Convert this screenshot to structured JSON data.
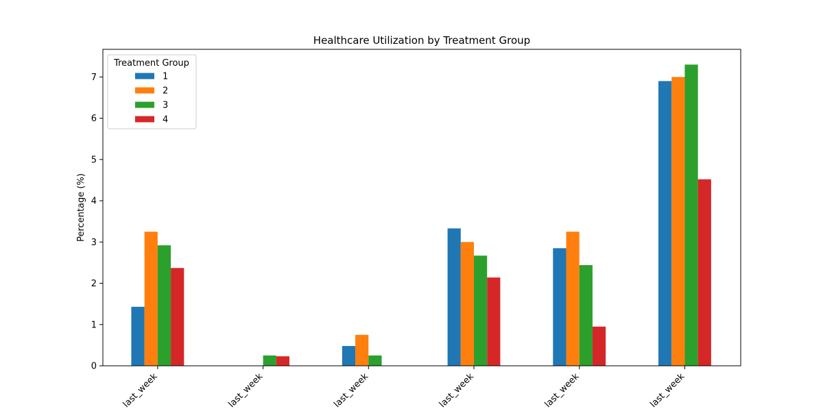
{
  "chart_data": {
    "type": "bar",
    "title": "Healthcare Utilization by Treatment Group",
    "xlabel": "",
    "ylabel": "Percentage (%)",
    "ylim": [
      0,
      7.67
    ],
    "yticks": [
      "0",
      "1",
      "2",
      "3",
      "4",
      "5",
      "6",
      "7"
    ],
    "grid": false,
    "categories": [
      "last_week",
      "last_week",
      "last_week",
      "last_week",
      "last_week",
      "last_week"
    ],
    "legend": {
      "title": "Treatment Group",
      "placement": "top-left"
    },
    "series": [
      {
        "name": "1",
        "color": "#1f77b4",
        "values": [
          1.43,
          0,
          0.48,
          3.33,
          2.85,
          6.9
        ]
      },
      {
        "name": "2",
        "color": "#ff7f0e",
        "values": [
          3.25,
          0,
          0.75,
          3.0,
          3.25,
          7.0
        ]
      },
      {
        "name": "3",
        "color": "#2ca02c",
        "values": [
          2.92,
          0.25,
          0.25,
          2.67,
          2.44,
          7.3
        ]
      },
      {
        "name": "4",
        "color": "#d62728",
        "values": [
          2.37,
          0.23,
          0,
          2.14,
          0.95,
          4.52
        ]
      }
    ]
  }
}
